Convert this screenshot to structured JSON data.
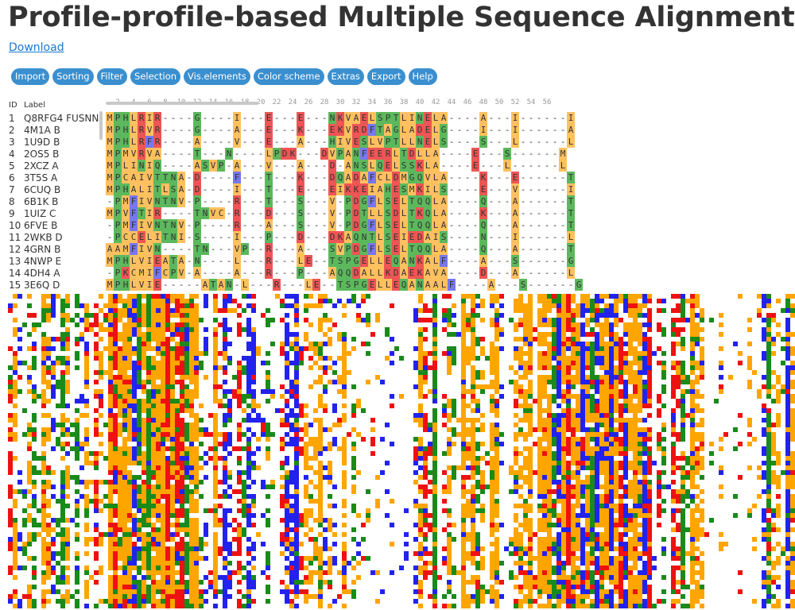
{
  "page_title": "Profile-profile-based Multiple Sequence Alignment",
  "download_label": "Download",
  "toolbar": [
    "Import",
    "Sorting",
    "Filter",
    "Selection",
    "Vis.elements",
    "Color scheme",
    "Extras",
    "Export",
    "Help"
  ],
  "table_header": {
    "id": "ID",
    "label": "Label"
  },
  "ruler_ticks": [
    "2",
    "4",
    "6",
    "8",
    "10",
    "12",
    "14",
    "16",
    "18",
    "20",
    "22",
    "24",
    "26",
    "28",
    "30",
    "32",
    "34",
    "36",
    "38",
    "40",
    "42",
    "44",
    "46",
    "48",
    "50",
    "52",
    "54",
    "56"
  ],
  "colors": {
    "hydrophobic": "#ffc060",
    "positive": "#ee5555",
    "polar": "#5cb85c",
    "aromatic": "#7777ee",
    "accent": "#3a8fcf",
    "link": "#1a7ad0"
  },
  "sequences": [
    {
      "id": "1",
      "label": "Q8RFG4_FUSNN",
      "seq": "MPHLRIR----G----I---E---E---NKVAELSPTLINELA----A---I------I"
    },
    {
      "id": "2",
      "label": "4M1A_B",
      "seq": "MPHLRVR----G----A---E---K---EKVRDFTAGLADELG----I---I------A"
    },
    {
      "id": "3",
      "label": "1U9D_B",
      "seq": "MPHLRFR----A----V---E---A---HIVESLVPTLLNELS----S---L------L"
    },
    {
      "id": "4",
      "label": "2OS5_B",
      "seq": "MPMVRVA----T---N----LPDK---DVPANFEERLTDLLA----E---S------M"
    },
    {
      "id": "5",
      "label": "2XCZ_A",
      "seq": "MPLINIQ----ASVP-A---V---A---D-ANSLQELSSKLA----E---L------L"
    },
    {
      "id": "6",
      "label": "3T5S_A",
      "seq": "MPCAIVTTNA-D----F---T---K---DQADAFCLDMGQVLA----K---E------T"
    },
    {
      "id": "7",
      "label": "6CUQ_B",
      "seq": "MPHALITLSA-D----I---T---E---EIKKEIAHESMKILS----E---V------I"
    },
    {
      "id": "8",
      "label": "6B1K_B",
      "seq": "-PMFIVNTNV-P----R---T---S---V-PDGFLSELTQQLA----Q---A------T"
    },
    {
      "id": "9",
      "label": "1UIZ_C",
      "seq": "MPVFTIR----TNVC-R---D---S---V-PDTLLSDLTKQLA----K---A------T"
    },
    {
      "id": "10",
      "label": "6FVE_B",
      "seq": "-PMFIVNTNV-P----R---A---S---V-PDGFLSELTQQLA----Q---A------T"
    },
    {
      "id": "11",
      "label": "2WKB_D",
      "seq": "-PCCELITNI-S----I---P---D---DKAQNTLSEIEDAIS----N---I------L"
    },
    {
      "id": "12",
      "label": "4GRN_B",
      "seq": "AAMFIVN----TN---VP--R---A---SVPDGFLSELTQQLA----Q---A------T"
    },
    {
      "id": "13",
      "label": "4NWP_E",
      "seq": "MPHLVIEATA-N----L---R---LE--TSPGELLEQANKALF----A---S------G"
    },
    {
      "id": "14",
      "label": "4DH4_A",
      "seq": "-PKCMIFCPV-A----A---R---P---AQQDALLKDAEKAVA----D---A------L"
    },
    {
      "id": "15",
      "label": "3E6Q_D",
      "seq": "MPHLVIE-----ATAN-L---R---LE--TSPGELLEQANAALF----A---S------G"
    }
  ]
}
